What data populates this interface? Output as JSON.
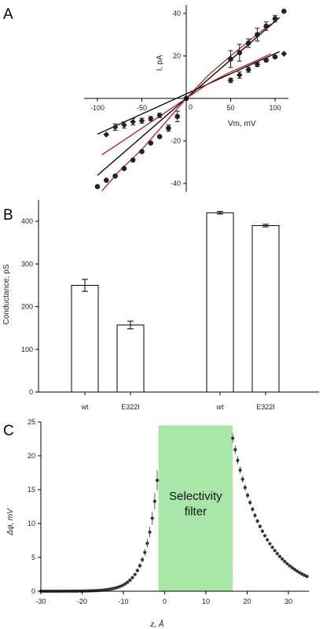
{
  "panels": {
    "a": "A",
    "b": "B",
    "c": "C"
  },
  "chart_data": [
    {
      "type": "line",
      "panel": "A",
      "xlabel": "Vm, mV",
      "ylabel": "I, pA",
      "xlim": [
        -115,
        115
      ],
      "ylim": [
        -44,
        44
      ],
      "x_ticks": [
        -100,
        -50,
        0,
        50,
        100
      ],
      "y_ticks": [
        -40,
        -20,
        20,
        40
      ],
      "grid": false,
      "series": [
        {
          "marker": "circle",
          "x": [
            -100,
            -90,
            -80,
            -70,
            -60,
            -50,
            -40,
            -30,
            -20,
            -10,
            0,
            50,
            60,
            70,
            80,
            90,
            100,
            110
          ],
          "y": [
            -41.5,
            -38.5,
            -36.5,
            -33,
            -29,
            -25,
            -21,
            -18,
            -14,
            -8.5,
            0,
            18.5,
            21.5,
            26,
            30,
            34,
            37.5,
            41
          ],
          "err": [
            0,
            0,
            0,
            0,
            0,
            0,
            0,
            0,
            1.5,
            2.5,
            0,
            4,
            4,
            2,
            3,
            2,
            1.5,
            0
          ]
        },
        {
          "marker": "diamond",
          "x": [
            -90,
            -80,
            -70,
            -60,
            -50,
            -40,
            -30,
            0,
            50,
            60,
            70,
            80,
            90,
            100,
            110
          ],
          "y": [
            -17,
            -13.5,
            -12.5,
            -11,
            -10.5,
            -9.5,
            -8,
            0,
            8.5,
            11,
            13.5,
            16,
            18,
            19.5,
            21
          ],
          "err": [
            0,
            1.5,
            1.5,
            1.5,
            1.2,
            1,
            1,
            0,
            1,
            1.5,
            1.2,
            1,
            0.8,
            0.6,
            0
          ]
        }
      ],
      "fit_lines": [
        {
          "color": "#000000",
          "x": [
            -100,
            105
          ],
          "y": [
            -36.2,
            38
          ]
        },
        {
          "color": "#000000",
          "x": [
            -100,
            105
          ],
          "y": [
            -16.8,
            22
          ]
        },
        {
          "color": "#b22222",
          "x": [
            -95,
            -75,
            -50,
            -25,
            0,
            25,
            50,
            75,
            95
          ],
          "y": [
            -43.5,
            -34,
            -24,
            -12,
            0,
            11,
            20,
            28.5,
            35
          ]
        },
        {
          "color": "#b22222",
          "x": [
            -95,
            -75,
            -50,
            -25,
            0,
            25,
            50,
            75,
            95
          ],
          "y": [
            -26.5,
            -21,
            -14,
            -7,
            0,
            7,
            12.5,
            17,
            21
          ]
        }
      ]
    },
    {
      "type": "bar",
      "panel": "B",
      "ylabel": "Conductance, pS",
      "categories": [
        "wt",
        "E322I",
        "wt",
        "E322I"
      ],
      "values": [
        250,
        157,
        420,
        390
      ],
      "errors": [
        14,
        9,
        3,
        3
      ],
      "ylim": [
        0,
        450
      ],
      "y_ticks": [
        0,
        100,
        200,
        300,
        400
      ],
      "grid": false
    },
    {
      "type": "scatter",
      "panel": "C",
      "xlabel": "z, Å",
      "ylabel": "Δφ, mV",
      "xlim": [
        -30,
        35
      ],
      "ylim": [
        0,
        25
      ],
      "x_ticks": [
        -30,
        -20,
        -10,
        0,
        10,
        20,
        30
      ],
      "y_ticks": [
        0,
        5,
        10,
        15,
        20,
        25
      ],
      "grid": false,
      "shaded_region": {
        "x": [
          -1.5,
          16.5
        ],
        "label_line1": "Selectivity",
        "label_line2": "filter",
        "color": "#a8e6a8"
      },
      "curve_model": {
        "left": {
          "x_range": [
            -30,
            -1.5
          ],
          "y0": 18.2,
          "decay": 0.35
        },
        "right": {
          "x_range": [
            16.5,
            35
          ],
          "y0": 22.6,
          "decay": 0.13
        },
        "point_spacing": 0.6
      }
    }
  ]
}
